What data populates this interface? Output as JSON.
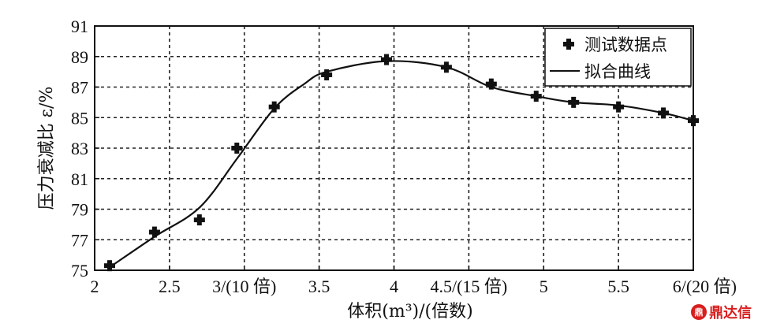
{
  "chart_data": {
    "type": "line",
    "ylabel": "压力衰减比 ε/%",
    "xlabel": "体积(m³)/(倍数)",
    "ylim": [
      75,
      91
    ],
    "yticks": [
      "75",
      "77",
      "79",
      "81",
      "83",
      "85",
      "87",
      "89",
      "91"
    ],
    "xlim": [
      2,
      6
    ],
    "xticks": [
      {
        "x": 2,
        "label": "2"
      },
      {
        "x": 2.5,
        "label": "2.5"
      },
      {
        "x": 3,
        "label": "3/(10 倍)"
      },
      {
        "x": 3.5,
        "label": "3.5"
      },
      {
        "x": 4,
        "label": "4"
      },
      {
        "x": 4.5,
        "label": "4.5/(15 倍)"
      },
      {
        "x": 5,
        "label": "5"
      },
      {
        "x": 5.5,
        "label": "5.5"
      },
      {
        "x": 6,
        "label": "6/(20 倍)"
      }
    ],
    "grid": true,
    "legend_position": "top-right",
    "series": [
      {
        "name": "测试数据点",
        "style": "markers",
        "x": [
          2.1,
          2.4,
          2.7,
          2.95,
          3.2,
          3.55,
          3.95,
          4.35,
          4.65,
          4.95,
          5.2,
          5.5,
          5.8,
          6.0
        ],
        "y": [
          75.3,
          77.5,
          78.3,
          83.0,
          85.7,
          87.8,
          88.8,
          88.3,
          87.2,
          86.4,
          86.0,
          85.7,
          85.3,
          84.8
        ]
      },
      {
        "name": "拟合曲线",
        "style": "line",
        "x": [
          2.1,
          2.4,
          2.7,
          2.95,
          3.2,
          3.4,
          3.55,
          3.95,
          4.35,
          4.65,
          4.95,
          5.2,
          5.5,
          5.8,
          6.0
        ],
        "y": [
          75.2,
          77.2,
          79.1,
          82.3,
          85.6,
          87.2,
          88.0,
          88.7,
          88.3,
          87.0,
          86.4,
          86.0,
          85.8,
          85.3,
          84.8
        ]
      }
    ]
  },
  "watermark": {
    "badge": "鼎",
    "text": "鼎达信"
  }
}
